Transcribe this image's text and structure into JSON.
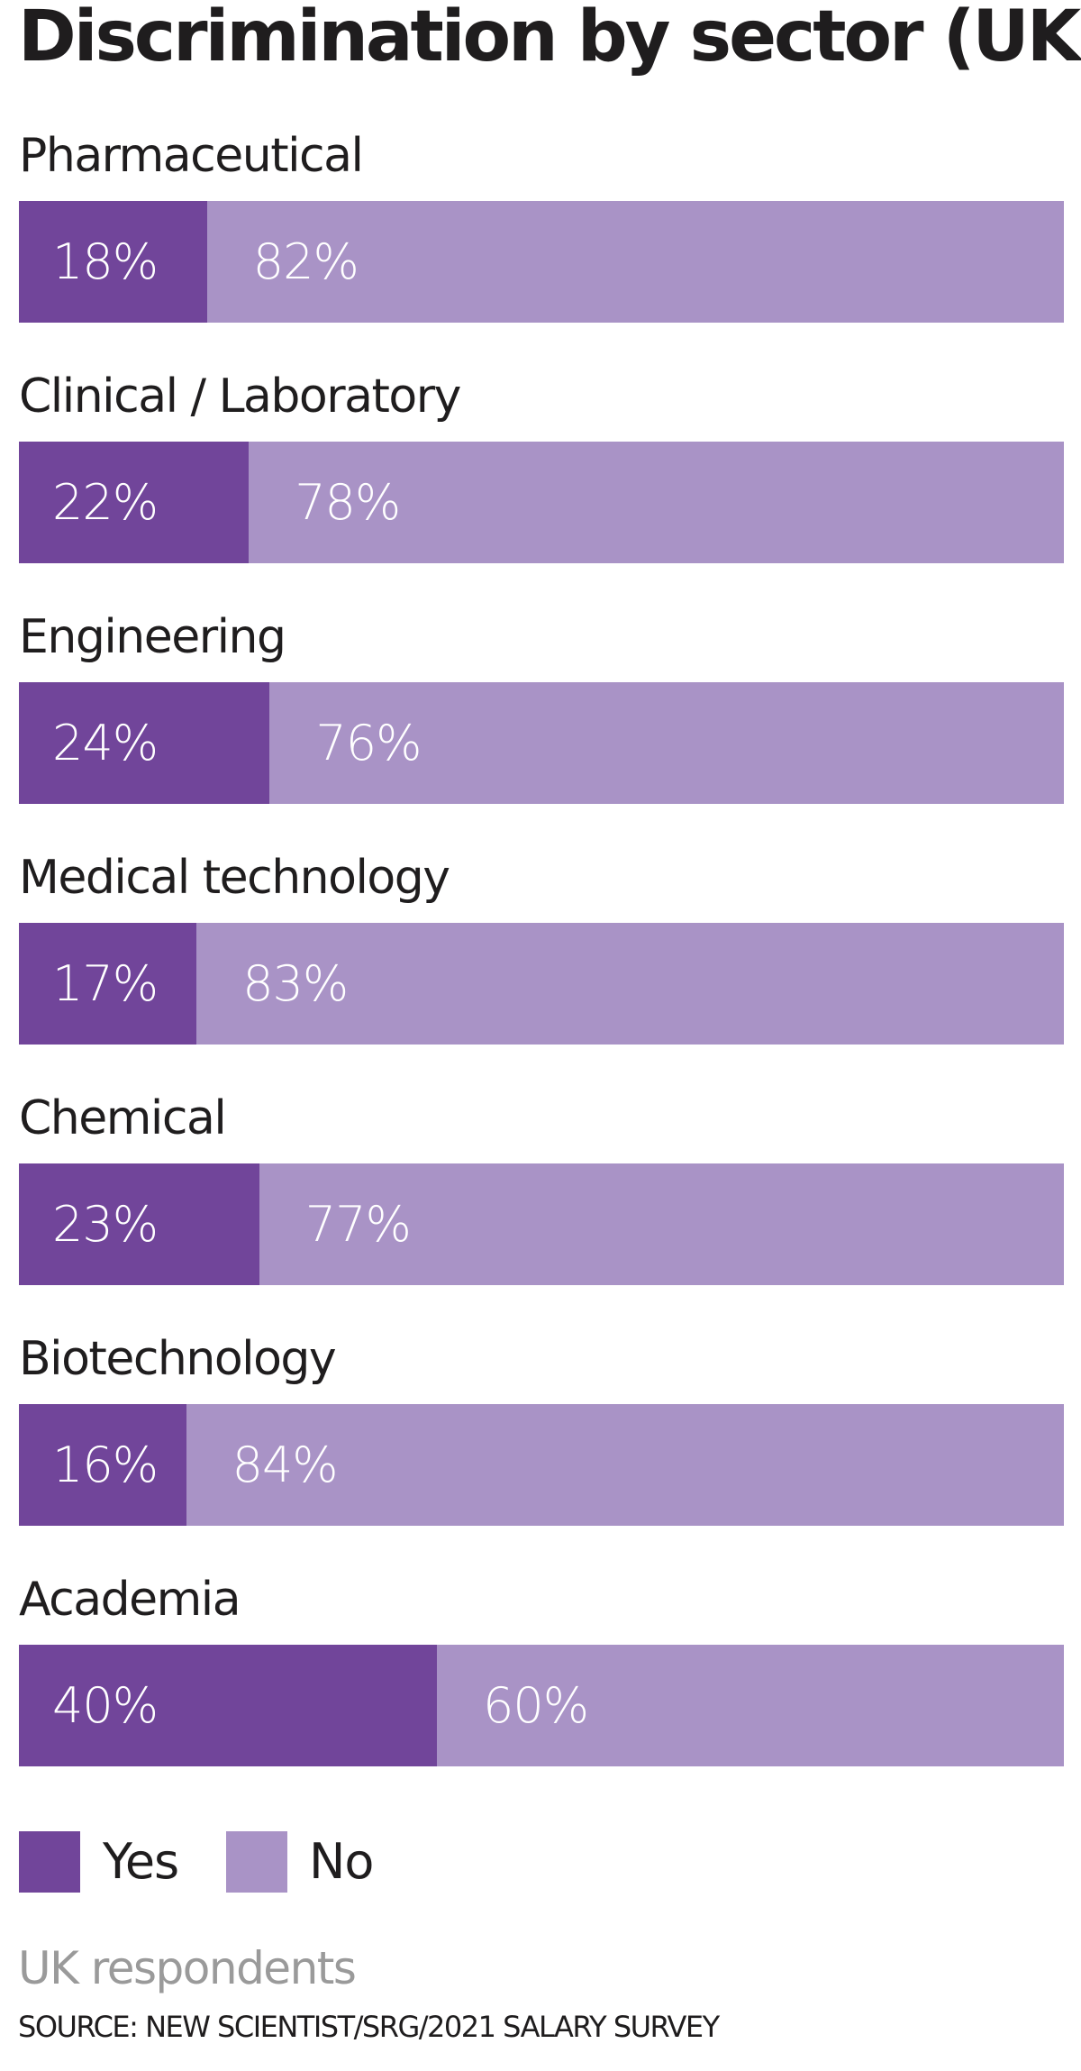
{
  "chart_data": {
    "type": "bar",
    "orientation": "horizontal-stacked-100",
    "title": "Discrimination by sector (UK)",
    "categories": [
      "Pharmaceutical",
      "Clinical / Laboratory",
      "Engineering",
      "Medical technology",
      "Chemical",
      "Biotechnology",
      "Academia"
    ],
    "series": [
      {
        "name": "Yes",
        "color": "#71459a",
        "values": [
          18,
          22,
          24,
          17,
          23,
          16,
          40
        ]
      },
      {
        "name": "No",
        "color": "#a993c6",
        "values": [
          82,
          78,
          76,
          83,
          77,
          84,
          60
        ]
      }
    ],
    "unit": "%",
    "xlim": [
      0,
      100
    ],
    "grid": false,
    "legend": "bottom-left",
    "note": "UK respondents",
    "source": "SOURCE: NEW SCIENTIST/SRG/2021 SALARY SURVEY"
  }
}
